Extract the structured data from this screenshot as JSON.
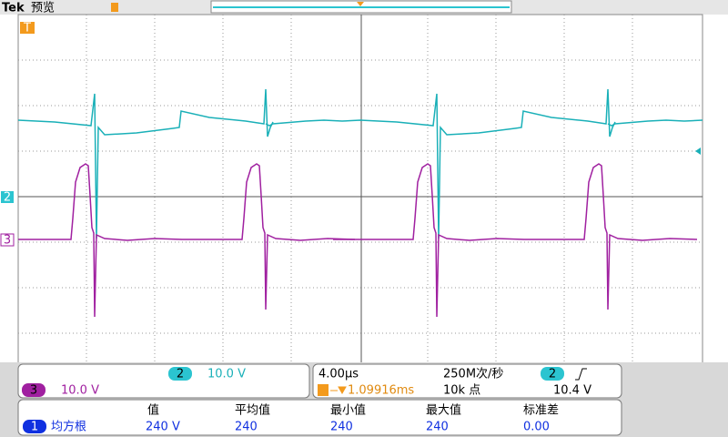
{
  "header": {
    "brand": "Tek",
    "status": "预览"
  },
  "markers": {
    "trigger": "T",
    "ch2": "2",
    "ch3": "3"
  },
  "channels": [
    {
      "label": "2",
      "scale": "10.0 V"
    },
    {
      "label": "3",
      "scale": "10.0 V"
    }
  ],
  "timebase": {
    "scale": "4.00µs",
    "sample_rate": "250M次/秒",
    "trigger_position": "1.09916ms",
    "record_length": "10k 点"
  },
  "trigger": {
    "source": "2",
    "level": "10.4 V"
  },
  "measurements": {
    "headers": [
      "值",
      "平均值",
      "最小值",
      "最大值",
      "标准差"
    ],
    "rows": [
      {
        "source": "1",
        "name": "均方根",
        "cells": [
          "240 V",
          "240",
          "240",
          "240",
          "0.00"
        ]
      }
    ]
  }
}
